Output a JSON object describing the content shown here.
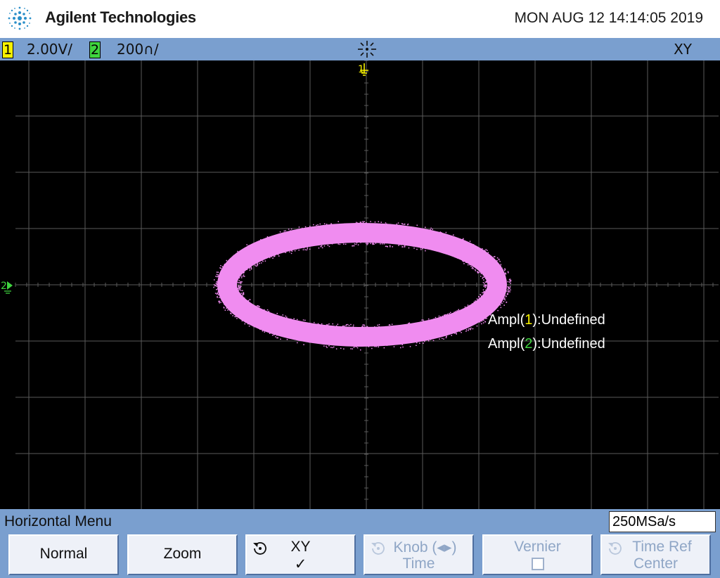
{
  "header": {
    "brand": "Agilent Technologies",
    "datetime": "MON AUG 12 14:14:05 2019",
    "logo_icon": "agilent-spark-logo"
  },
  "statusbar": {
    "ch1_badge": "1",
    "ch1_scale": "2.00V/",
    "ch2_badge": "2",
    "ch2_scale": "200∩/",
    "acq_icon": "acquisition-status-icon",
    "mode": "XY"
  },
  "screen": {
    "ch1_marker": "1",
    "ch2_marker": "2",
    "trace_color": "#f08cf0",
    "grid_color": "#5a5a5a",
    "measurements": [
      {
        "prefix": "Ampl(",
        "channel": "1",
        "suffix": "):Undefined"
      },
      {
        "prefix": "Ampl(",
        "channel": "2",
        "suffix": "):Undefined"
      }
    ]
  },
  "menu": {
    "title": "Horizontal Menu",
    "sample_rate": "250MSa/s",
    "softkeys": [
      {
        "line1": "Normal",
        "line2": "",
        "enabled": true
      },
      {
        "line1": "Zoom",
        "line2": "",
        "enabled": true
      },
      {
        "line1": "XY",
        "line2": "✓",
        "enabled": true,
        "icon": "rotate-knob-icon"
      },
      {
        "line1": "Knob (◂▸)",
        "line2": "Time",
        "enabled": false,
        "icon": "rotate-knob-icon"
      },
      {
        "line1": "Vernier",
        "line2": "",
        "enabled": false,
        "icon": "checkbox-icon"
      },
      {
        "line1": "Time Ref",
        "line2": "Center",
        "enabled": false,
        "icon": "rotate-knob-icon"
      }
    ]
  },
  "colors": {
    "header_bg": "#ffffff",
    "bar_bg": "#7a9fcf",
    "ch1": "#f7f200",
    "ch2": "#3fd43f",
    "screen_bg": "#000000"
  }
}
